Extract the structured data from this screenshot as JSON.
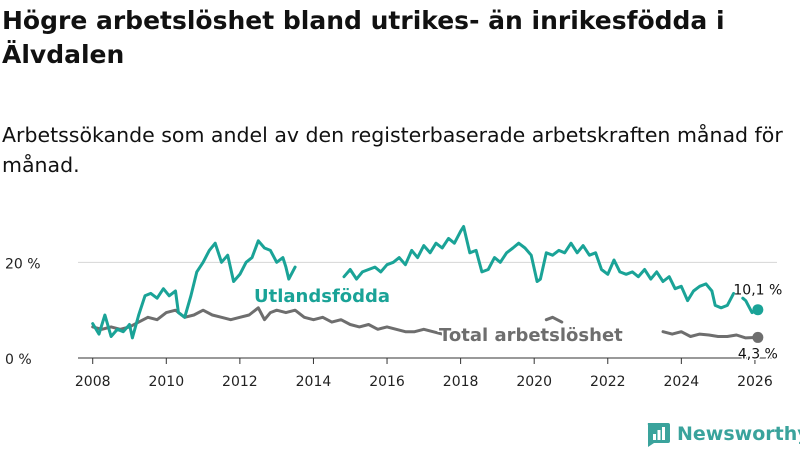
{
  "title": "Högre arbetslöshet bland utrikes- än inrikesfödda i Älvdalen",
  "subtitle": "Arbetssökande som andel av den registerbaserade arbetskraften månad för månad.",
  "brand": {
    "name": "Newsworthy",
    "color": "#3aa39c",
    "icon": "bar-chart-logo-icon"
  },
  "colors": {
    "foreign": "#1aa397",
    "total": "#6e6e6e",
    "grid": "#d6d6d6",
    "axis": "#333333"
  },
  "chart_data": {
    "type": "line",
    "title": "Högre arbetslöshet bland utrikes- än inrikesfödda i Älvdalen",
    "xlabel": "",
    "ylabel": "",
    "xlim": [
      2007.6,
      2026.6
    ],
    "ylim": [
      0,
      23
    ],
    "x_ticks": [
      2008,
      2010,
      2012,
      2014,
      2016,
      2018,
      2020,
      2022,
      2024,
      2026
    ],
    "x_tick_labels": [
      "2008",
      "2010",
      "2012",
      "2014",
      "2016",
      "2018",
      "2020",
      "2022",
      "2024",
      "2026"
    ],
    "y_ticks": [
      0,
      20
    ],
    "y_tick_labels": [
      "0 %",
      "20 %"
    ],
    "grid": "horizontal",
    "series": [
      {
        "name": "Utlandsfödda",
        "label": "Utlandsfödda",
        "color": "#1aa397",
        "end_label": "10,1 %",
        "end_value": 10.1,
        "points": [
          [
            2008.0,
            7.2
          ],
          [
            2008.17,
            5.0
          ],
          [
            2008.33,
            9.0
          ],
          [
            2008.5,
            4.5
          ],
          [
            2008.67,
            6.0
          ],
          [
            2008.83,
            5.5
          ],
          [
            2009.0,
            7.0
          ],
          [
            2009.08,
            4.2
          ],
          [
            2009.25,
            9.0
          ],
          [
            2009.42,
            13.0
          ],
          [
            2009.58,
            13.5
          ],
          [
            2009.75,
            12.5
          ],
          [
            2009.92,
            14.5
          ],
          [
            2010.08,
            13.0
          ],
          [
            2010.25,
            14.0
          ],
          [
            2010.33,
            9.5
          ],
          [
            2010.5,
            8.5
          ],
          [
            2010.67,
            13.0
          ],
          [
            2010.83,
            18.0
          ],
          [
            2011.0,
            20.0
          ],
          [
            2011.17,
            22.5
          ],
          [
            2011.33,
            24.0
          ],
          [
            2011.5,
            20.0
          ],
          [
            2011.67,
            21.5
          ],
          [
            2011.83,
            16.0
          ],
          [
            2012.0,
            17.5
          ],
          [
            2012.17,
            20.0
          ],
          [
            2012.33,
            21.0
          ],
          [
            2012.5,
            24.5
          ],
          [
            2012.67,
            23.0
          ],
          [
            2012.83,
            22.5
          ],
          [
            2013.0,
            20.0
          ],
          [
            2013.17,
            21.0
          ],
          [
            2013.25,
            19.0
          ],
          [
            2013.33,
            16.5
          ],
          [
            2013.5,
            19.0
          ],
          null,
          [
            2014.83,
            17.0
          ],
          [
            2015.0,
            18.5
          ],
          [
            2015.17,
            16.5
          ],
          [
            2015.33,
            18.0
          ],
          [
            2015.5,
            18.5
          ],
          [
            2015.67,
            19.0
          ],
          [
            2015.83,
            18.0
          ],
          [
            2016.0,
            19.5
          ],
          [
            2016.17,
            20.0
          ],
          [
            2016.33,
            21.0
          ],
          [
            2016.5,
            19.5
          ],
          [
            2016.67,
            22.5
          ],
          [
            2016.83,
            21.0
          ],
          [
            2017.0,
            23.5
          ],
          [
            2017.17,
            22.0
          ],
          [
            2017.33,
            24.0
          ],
          [
            2017.5,
            23.0
          ],
          [
            2017.67,
            25.0
          ],
          [
            2017.83,
            24.0
          ],
          [
            2018.0,
            26.5
          ],
          [
            2018.08,
            27.5
          ],
          [
            2018.25,
            22.0
          ],
          [
            2018.42,
            22.5
          ],
          [
            2018.58,
            18.0
          ],
          [
            2018.75,
            18.5
          ],
          [
            2018.92,
            21.0
          ],
          [
            2019.08,
            20.0
          ],
          [
            2019.25,
            22.0
          ],
          [
            2019.42,
            23.0
          ],
          [
            2019.58,
            24.0
          ],
          [
            2019.75,
            23.0
          ],
          [
            2019.92,
            21.5
          ],
          [
            2020.08,
            16.0
          ],
          [
            2020.17,
            16.5
          ],
          [
            2020.33,
            22.0
          ],
          [
            2020.5,
            21.5
          ],
          [
            2020.67,
            22.5
          ],
          [
            2020.83,
            22.0
          ],
          [
            2021.0,
            24.0
          ],
          [
            2021.17,
            22.0
          ],
          [
            2021.33,
            23.5
          ],
          [
            2021.5,
            21.5
          ],
          [
            2021.67,
            22.0
          ],
          [
            2021.83,
            18.5
          ],
          [
            2022.0,
            17.5
          ],
          [
            2022.17,
            20.5
          ],
          [
            2022.33,
            18.0
          ],
          [
            2022.5,
            17.5
          ],
          [
            2022.67,
            18.0
          ],
          [
            2022.83,
            17.0
          ],
          [
            2023.0,
            18.5
          ],
          [
            2023.17,
            16.5
          ],
          [
            2023.33,
            18.0
          ],
          [
            2023.5,
            16.0
          ],
          [
            2023.67,
            17.0
          ],
          [
            2023.83,
            14.5
          ],
          [
            2024.0,
            15.0
          ],
          [
            2024.17,
            12.0
          ],
          [
            2024.33,
            14.0
          ],
          [
            2024.5,
            15.0
          ],
          [
            2024.67,
            15.5
          ],
          [
            2024.83,
            14.0
          ],
          [
            2024.92,
            11.0
          ],
          [
            2025.08,
            10.5
          ],
          [
            2025.25,
            11.0
          ],
          [
            2025.42,
            13.5
          ],
          null,
          [
            2025.67,
            12.5
          ],
          [
            2025.75,
            12.0
          ],
          [
            2025.92,
            9.5
          ],
          [
            2026.08,
            10.1
          ]
        ]
      },
      {
        "name": "Total arbetslöshet",
        "label": "Total arbetslöshet",
        "color": "#6e6e6e",
        "end_label": "4,3 %",
        "end_value": 4.3,
        "points": [
          [
            2008.0,
            6.5
          ],
          [
            2008.25,
            6.0
          ],
          [
            2008.5,
            6.5
          ],
          [
            2008.75,
            6.0
          ],
          [
            2009.0,
            6.5
          ],
          [
            2009.25,
            7.5
          ],
          [
            2009.5,
            8.5
          ],
          [
            2009.75,
            8.0
          ],
          [
            2010.0,
            9.5
          ],
          [
            2010.25,
            10.0
          ],
          [
            2010.5,
            8.5
          ],
          [
            2010.75,
            9.0
          ],
          [
            2011.0,
            10.0
          ],
          [
            2011.25,
            9.0
          ],
          [
            2011.5,
            8.5
          ],
          [
            2011.75,
            8.0
          ],
          [
            2012.0,
            8.5
          ],
          [
            2012.25,
            9.0
          ],
          [
            2012.5,
            10.5
          ],
          [
            2012.67,
            8.0
          ],
          [
            2012.83,
            9.5
          ],
          [
            2013.0,
            10.0
          ],
          [
            2013.25,
            9.5
          ],
          [
            2013.5,
            10.0
          ],
          [
            2013.75,
            8.5
          ],
          [
            2014.0,
            8.0
          ],
          [
            2014.25,
            8.5
          ],
          [
            2014.5,
            7.5
          ],
          [
            2014.75,
            8.0
          ],
          [
            2015.0,
            7.0
          ],
          [
            2015.25,
            6.5
          ],
          [
            2015.5,
            7.0
          ],
          [
            2015.75,
            6.0
          ],
          [
            2016.0,
            6.5
          ],
          [
            2016.25,
            6.0
          ],
          [
            2016.5,
            5.5
          ],
          [
            2016.75,
            5.5
          ],
          [
            2017.0,
            6.0
          ],
          [
            2017.25,
            5.5
          ],
          [
            2017.5,
            5.0
          ],
          null,
          [
            2020.33,
            8.0
          ],
          [
            2020.5,
            8.5
          ],
          [
            2020.75,
            7.5
          ],
          null,
          [
            2023.5,
            5.5
          ],
          [
            2023.75,
            5.0
          ],
          [
            2024.0,
            5.5
          ],
          [
            2024.25,
            4.5
          ],
          [
            2024.5,
            5.0
          ],
          [
            2024.75,
            4.8
          ],
          [
            2025.0,
            4.5
          ],
          [
            2025.25,
            4.5
          ],
          [
            2025.5,
            4.8
          ],
          [
            2025.75,
            4.2
          ],
          [
            2026.08,
            4.3
          ]
        ]
      }
    ]
  }
}
